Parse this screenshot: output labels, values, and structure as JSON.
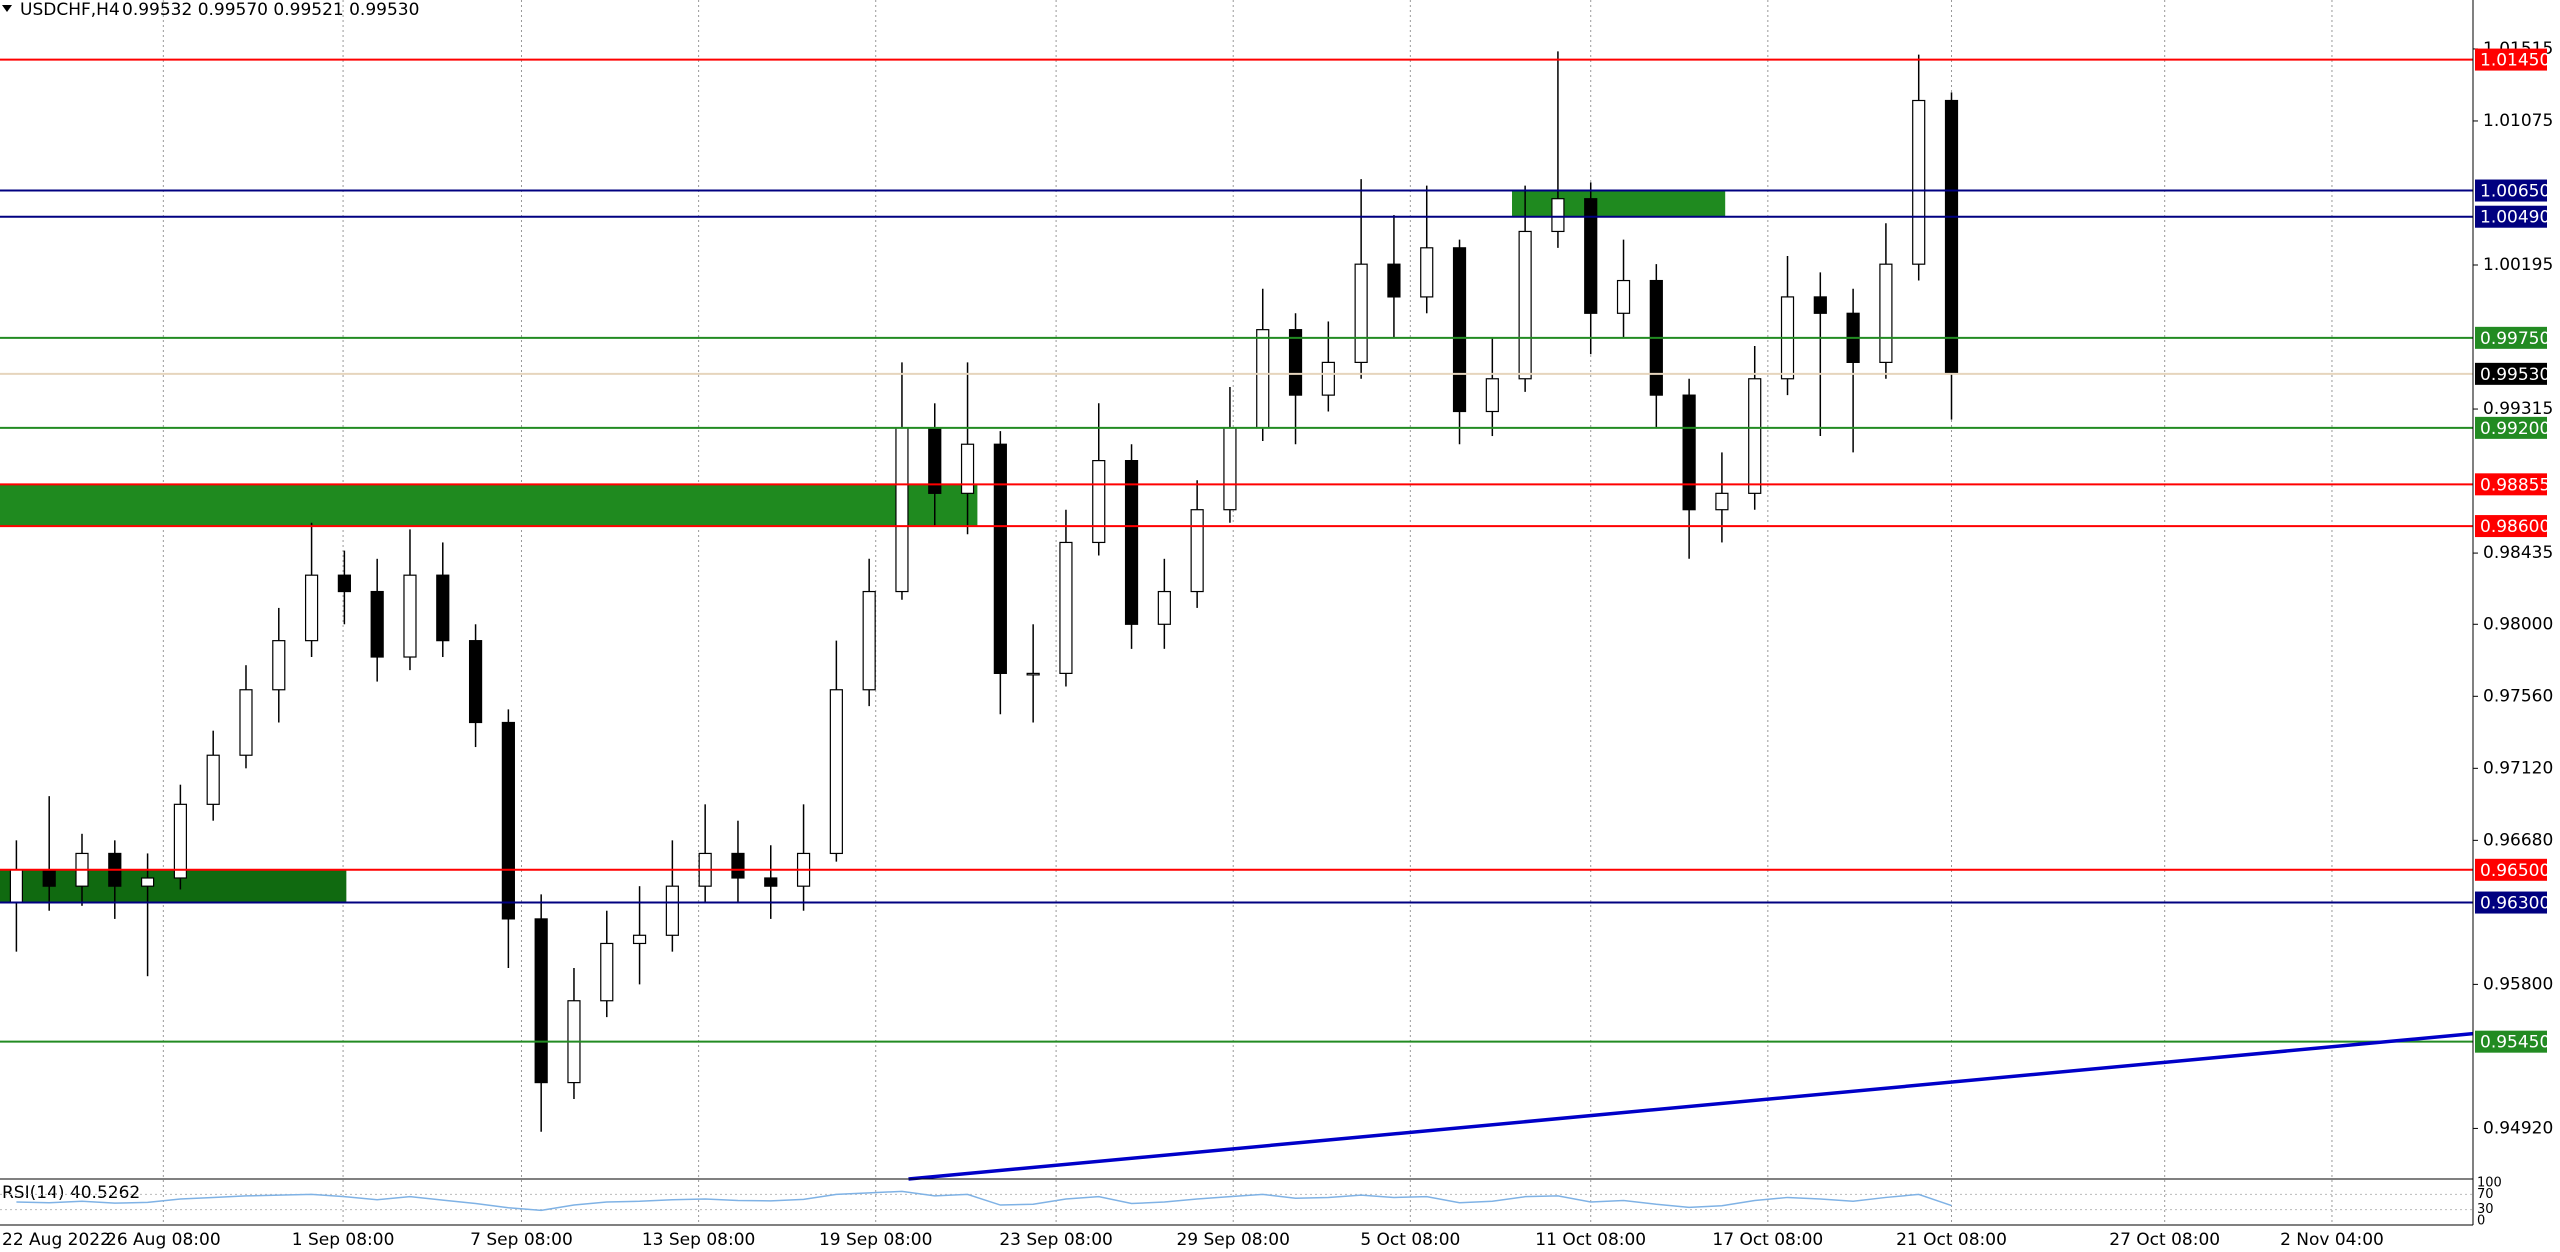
{
  "chart_data": {
    "type": "candlestick",
    "symbol": "USDCHF,H4",
    "quote": "0.99532 0.99570 0.99521 0.99530",
    "xlim": [
      -0.5,
      74.9
    ],
    "ylim": [
      0.94611,
      1.01814
    ],
    "yticks": [
      {
        "value": 1.01515,
        "label": "1.01515"
      },
      {
        "value": 1.01075,
        "label": "1.01075"
      },
      {
        "value": 1.00195,
        "label": "1.00195"
      },
      {
        "value": 0.99315,
        "label": "0.99315"
      },
      {
        "value": 0.98435,
        "label": "0.98435"
      },
      {
        "value": 0.98,
        "label": "0.98000"
      },
      {
        "value": 0.9756,
        "label": "0.97560"
      },
      {
        "value": 0.9712,
        "label": "0.97120"
      },
      {
        "value": 0.9668,
        "label": "0.96680"
      },
      {
        "value": 0.958,
        "label": "0.95800"
      },
      {
        "value": 0.9492,
        "label": "0.94920"
      }
    ],
    "xticks": [
      {
        "value": -0.5,
        "label": "22 Aug 2022"
      },
      {
        "value": 4.48,
        "label": "26 Aug 08:00"
      },
      {
        "value": 9.96,
        "label": "1 Sep 08:00"
      },
      {
        "value": 15.4,
        "label": "7 Sep 08:00"
      },
      {
        "value": 20.8,
        "label": "13 Sep 08:00"
      },
      {
        "value": 26.2,
        "label": "19 Sep 08:00"
      },
      {
        "value": 31.7,
        "label": "23 Sep 08:00"
      },
      {
        "value": 37.1,
        "label": "29 Sep 08:00"
      },
      {
        "value": 42.5,
        "label": "5 Oct 08:00"
      },
      {
        "value": 48.0,
        "label": "11 Oct 08:00"
      },
      {
        "value": 53.4,
        "label": "17 Oct 08:00"
      },
      {
        "value": 59.0,
        "label": "21 Oct 08:00"
      },
      {
        "value": 65.5,
        "label": "27 Oct 08:00"
      },
      {
        "value": 70.6,
        "label": "2 Nov 04:00"
      }
    ],
    "ohlc": [
      [
        0.963,
        0.9668,
        0.96,
        0.965
      ],
      [
        0.965,
        0.9695,
        0.9625,
        0.964
      ],
      [
        0.964,
        0.9672,
        0.9628,
        0.966
      ],
      [
        0.966,
        0.9668,
        0.962,
        0.964
      ],
      [
        0.964,
        0.966,
        0.9585,
        0.9645
      ],
      [
        0.9645,
        0.9702,
        0.9638,
        0.969
      ],
      [
        0.969,
        0.9735,
        0.968,
        0.972
      ],
      [
        0.972,
        0.9775,
        0.9712,
        0.976
      ],
      [
        0.976,
        0.981,
        0.974,
        0.979
      ],
      [
        0.979,
        0.9862,
        0.978,
        0.983
      ],
      [
        0.983,
        0.9845,
        0.98,
        0.982
      ],
      [
        0.982,
        0.984,
        0.9765,
        0.978
      ],
      [
        0.978,
        0.9858,
        0.9772,
        0.983
      ],
      [
        0.983,
        0.985,
        0.978,
        0.979
      ],
      [
        0.979,
        0.98,
        0.9725,
        0.974
      ],
      [
        0.974,
        0.9748,
        0.959,
        0.962
      ],
      [
        0.962,
        0.9635,
        0.949,
        0.952
      ],
      [
        0.952,
        0.959,
        0.951,
        0.957
      ],
      [
        0.957,
        0.9625,
        0.956,
        0.9605
      ],
      [
        0.9605,
        0.964,
        0.958,
        0.961
      ],
      [
        0.961,
        0.9668,
        0.96,
        0.964
      ],
      [
        0.964,
        0.969,
        0.963,
        0.966
      ],
      [
        0.966,
        0.968,
        0.963,
        0.9645
      ],
      [
        0.9645,
        0.9665,
        0.962,
        0.964
      ],
      [
        0.964,
        0.969,
        0.9625,
        0.966
      ],
      [
        0.966,
        0.979,
        0.9655,
        0.976
      ],
      [
        0.976,
        0.984,
        0.975,
        0.982
      ],
      [
        0.982,
        0.996,
        0.9815,
        0.992
      ],
      [
        0.992,
        0.9935,
        0.986,
        0.988
      ],
      [
        0.988,
        0.996,
        0.9855,
        0.991
      ],
      [
        0.991,
        0.9918,
        0.9745,
        0.977
      ],
      [
        0.977,
        0.98,
        0.974,
        0.977
      ],
      [
        0.977,
        0.987,
        0.9762,
        0.985
      ],
      [
        0.985,
        0.9935,
        0.9842,
        0.99
      ],
      [
        0.99,
        0.991,
        0.9785,
        0.98
      ],
      [
        0.98,
        0.984,
        0.9785,
        0.982
      ],
      [
        0.982,
        0.9888,
        0.981,
        0.987
      ],
      [
        0.987,
        0.9945,
        0.9862,
        0.992
      ],
      [
        0.992,
        1.0005,
        0.9912,
        0.998
      ],
      [
        0.998,
        0.999,
        0.991,
        0.994
      ],
      [
        0.994,
        0.9985,
        0.993,
        0.996
      ],
      [
        0.996,
        1.0072,
        0.995,
        1.002
      ],
      [
        1.002,
        1.005,
        0.9975,
        1.0
      ],
      [
        1.0,
        1.0068,
        0.999,
        1.003
      ],
      [
        1.003,
        1.0035,
        0.991,
        0.993
      ],
      [
        0.993,
        0.9975,
        0.9915,
        0.995
      ],
      [
        0.995,
        1.0068,
        0.9942,
        1.004
      ],
      [
        1.004,
        1.015,
        1.003,
        1.006
      ],
      [
        1.006,
        1.007,
        0.9965,
        0.999
      ],
      [
        0.999,
        1.0035,
        0.9975,
        1.001
      ],
      [
        1.001,
        1.002,
        0.992,
        0.994
      ],
      [
        0.994,
        0.995,
        0.984,
        0.987
      ],
      [
        0.987,
        0.9905,
        0.985,
        0.988
      ],
      [
        0.988,
        0.997,
        0.987,
        0.995
      ],
      [
        0.995,
        1.0025,
        0.994,
        1.0
      ],
      [
        1.0,
        1.0015,
        0.9915,
        0.999
      ],
      [
        0.999,
        1.0005,
        0.9905,
        0.996
      ],
      [
        0.996,
        1.0045,
        0.995,
        1.002
      ],
      [
        1.002,
        1.0148,
        1.001,
        1.012
      ],
      [
        1.012,
        1.0125,
        0.9925,
        0.9953
      ]
    ],
    "zones": [
      {
        "from": 45.6,
        "to": 52.1,
        "low": 1.0049,
        "high": 1.0065,
        "color": "#1f8a1f"
      },
      {
        "from": -0.5,
        "to": 29.3,
        "low": 0.986,
        "high": 0.98855,
        "color": "#1f8a1f"
      },
      {
        "from": -0.5,
        "to": 10.06,
        "low": 0.963,
        "high": 0.965,
        "color": "#106a10"
      }
    ],
    "levels": [
      {
        "value": 1.0145,
        "label": "1.01450",
        "color": "#ff0000"
      },
      {
        "value": 1.0065,
        "label": "1.00650",
        "color": "#000080"
      },
      {
        "value": 1.0049,
        "label": "1.00490",
        "color": "#000080"
      },
      {
        "value": 0.9975,
        "label": "0.99750",
        "color": "#228b22"
      },
      {
        "value": 0.9953,
        "label": "0.99530",
        "color": "#000000"
      },
      {
        "value": 0.992,
        "label": "0.99200",
        "color": "#228b22"
      },
      {
        "value": 0.98855,
        "label": "0.98855",
        "color": "#ff0000"
      },
      {
        "value": 0.986,
        "label": "0.98600",
        "color": "#ff0000"
      },
      {
        "value": 0.965,
        "label": "0.96500",
        "color": "#ff0000"
      },
      {
        "value": 0.963,
        "label": "0.96300",
        "color": "#000080"
      },
      {
        "value": 0.9545,
        "label": "0.95450",
        "color": "#228b22"
      }
    ],
    "trendline": {
      "x": [
        27.2,
        74.9
      ],
      "y": [
        0.94611,
        0.95499
      ],
      "color": "#0000c8"
    },
    "rsi": {
      "label": "RSI(14) 40.5262",
      "color": "#7fb2e5",
      "ylim": [
        0,
        100
      ],
      "yticks": [
        100,
        70,
        30,
        0
      ],
      "values": [
        50,
        48,
        52,
        47,
        49,
        58,
        62,
        66,
        68,
        70,
        64,
        56,
        64,
        55,
        46,
        35,
        28,
        42,
        50,
        52,
        56,
        58,
        54,
        53,
        57,
        70,
        74,
        78,
        66,
        70,
        42,
        44,
        58,
        64,
        46,
        50,
        58,
        64,
        70,
        60,
        62,
        68,
        62,
        64,
        48,
        52,
        64,
        66,
        50,
        54,
        44,
        36,
        40,
        54,
        62,
        58,
        52,
        62,
        70,
        40.5262
      ]
    }
  }
}
